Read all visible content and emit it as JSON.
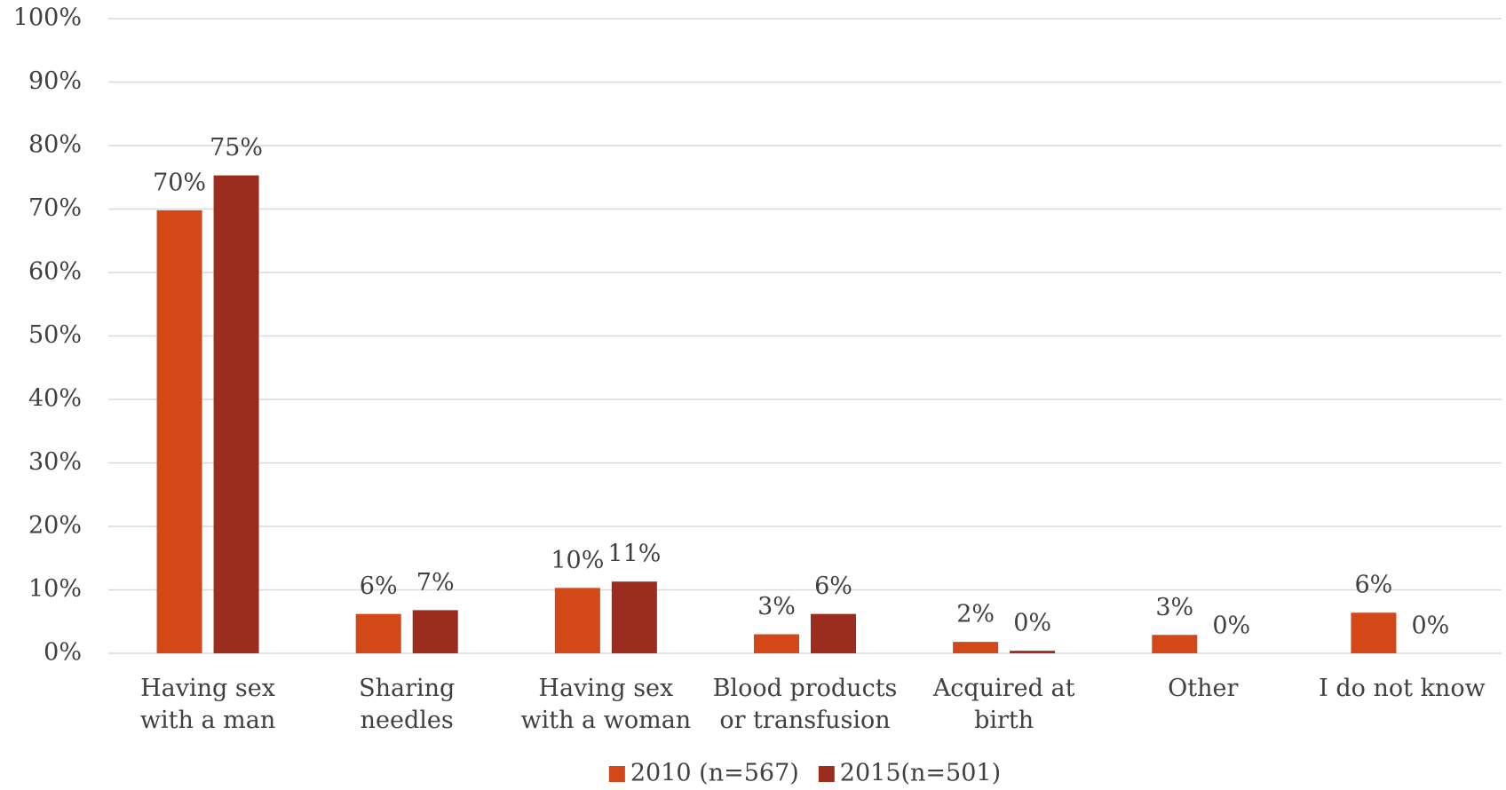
{
  "chart_data": {
    "type": "bar",
    "categories": [
      "Having sex\nwith a man",
      "Sharing\nneedles",
      "Having sex\nwith a woman",
      "Blood products\nor transfusion",
      "Acquired at\nbirth",
      "Other",
      "I do not know"
    ],
    "series": [
      {
        "name": "2010 (n=567)",
        "color": "#d34817",
        "values": [
          69.8,
          6.2,
          10.3,
          3.0,
          1.8,
          2.9,
          6.4
        ],
        "value_labels": [
          "70%",
          "6%",
          "10%",
          "3%",
          "2%",
          "3%",
          "6%"
        ]
      },
      {
        "name": "2015(n=501)",
        "color": "#9b2d1f",
        "values": [
          75.3,
          6.8,
          11.3,
          6.2,
          0.4,
          0,
          0
        ],
        "value_labels": [
          "75%",
          "7%",
          "11%",
          "6%",
          "0%",
          "0%",
          "0%"
        ]
      }
    ],
    "ylim": [
      0,
      100
    ],
    "yticks": [
      {
        "value": 0,
        "label": "0%"
      },
      {
        "value": 10,
        "label": "10%"
      },
      {
        "value": 20,
        "label": "20%"
      },
      {
        "value": 30,
        "label": "30%"
      },
      {
        "value": 40,
        "label": "40%"
      },
      {
        "value": 50,
        "label": "50%"
      },
      {
        "value": 60,
        "label": "60%"
      },
      {
        "value": 70,
        "label": "70%"
      },
      {
        "value": 80,
        "label": "80%"
      },
      {
        "value": 90,
        "label": "90%"
      },
      {
        "value": 100,
        "label": "100%"
      }
    ],
    "grid": true,
    "legend": "bottom"
  }
}
